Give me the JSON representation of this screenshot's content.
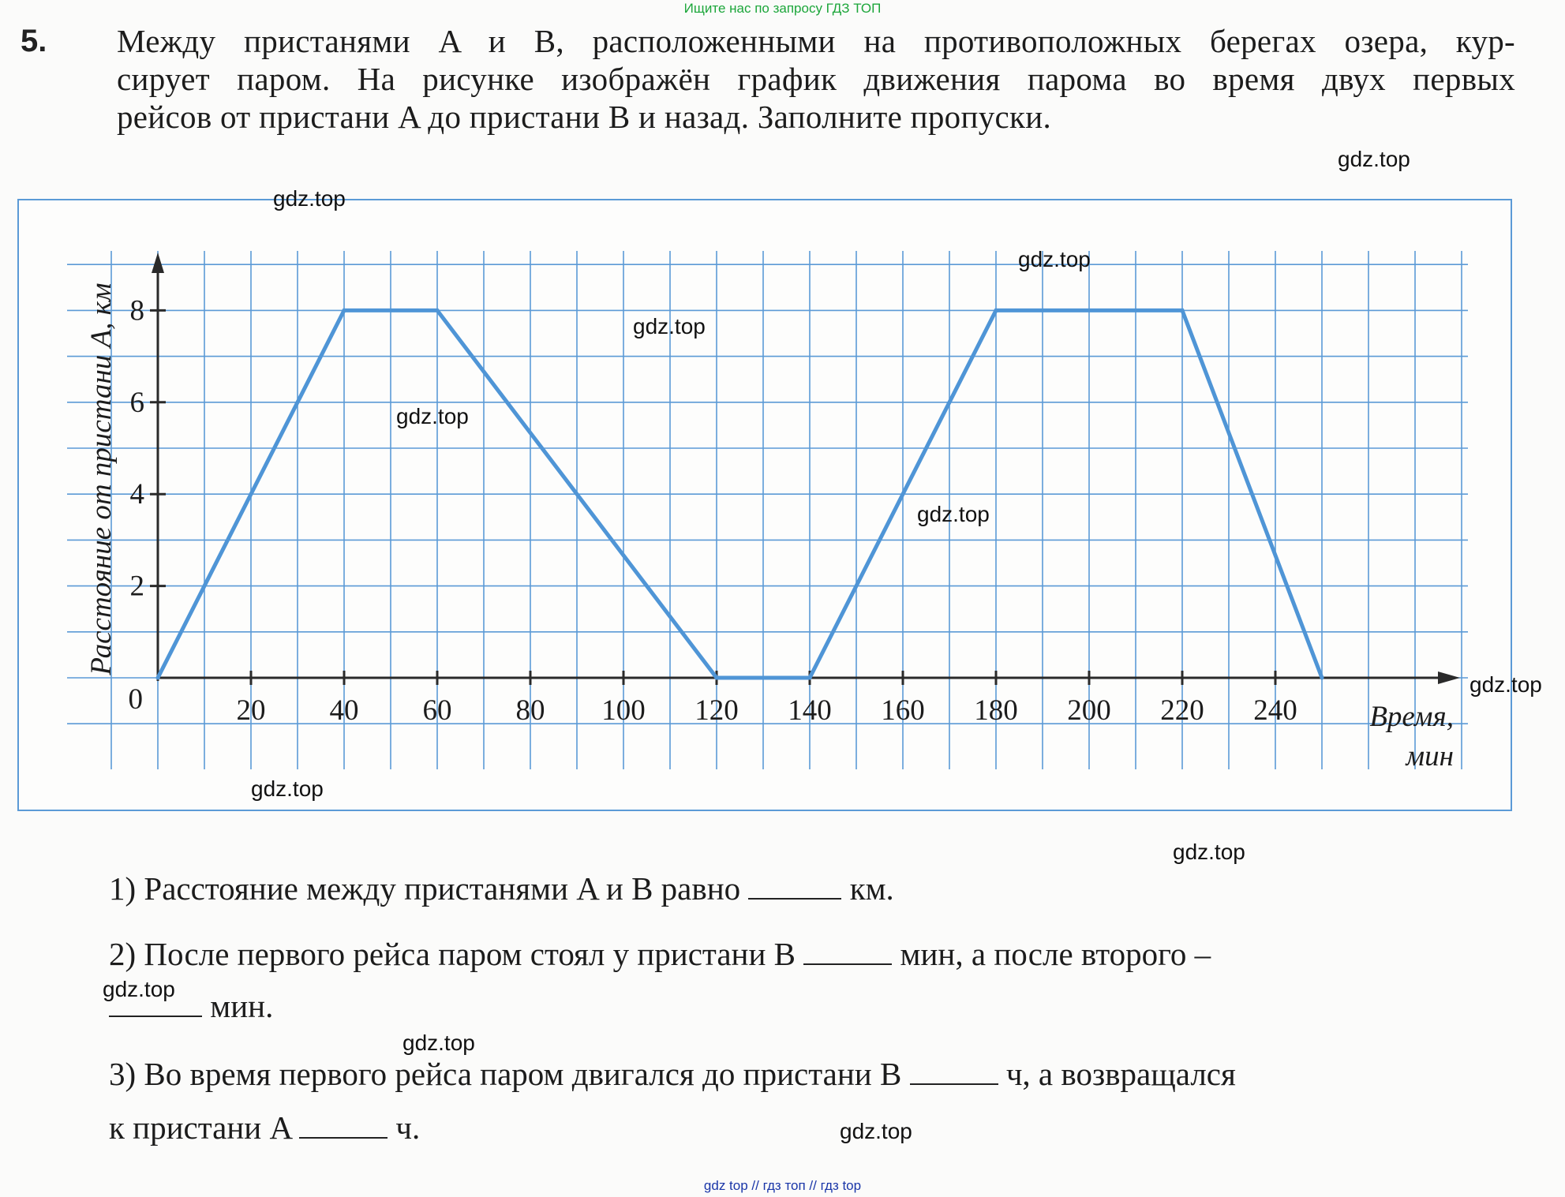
{
  "banner_top": "Ищите нас по запросу ГДЗ ТОП",
  "task": {
    "number": "5.",
    "lines": [
      "Между пристанями A и B, расположенными на противоположных берегах озера, кур-",
      "сирует паром. На рисунке изображён график движения парома во время двух первых",
      "рейсов от пристани A до пристани B и назад. Заполните пропуски."
    ]
  },
  "chart_data": {
    "type": "line",
    "title": "",
    "xlabel": "Время, мин",
    "xlabel_line1": "Время,",
    "xlabel_line2": "мин",
    "ylabel": "Расстояние от пристани A, км",
    "origin_label": "0",
    "xlim": [
      -10,
      280
    ],
    "ylim": [
      0,
      9
    ],
    "x_ticks": [
      20,
      40,
      60,
      80,
      100,
      120,
      140,
      160,
      180,
      200,
      220,
      240
    ],
    "y_ticks": [
      2,
      4,
      6,
      8
    ],
    "grid": true,
    "grid_step_x": 10,
    "grid_step_y": 1,
    "series_color": "#4f95d6",
    "axis_color": "#2a2a2a",
    "grid_color": "#5b9ad6",
    "series": [
      {
        "x": [
          0,
          40,
          60,
          120,
          140,
          180,
          220,
          250
        ],
        "y": [
          0,
          8,
          8,
          0,
          0,
          8,
          8,
          0
        ]
      }
    ]
  },
  "questions": [
    {
      "num": "1)",
      "text_before": "Расстояние между пристанями A и B равно",
      "text_after": "км."
    },
    {
      "num": "2)",
      "text_before": "После первого рейса паром стоял у пристани B",
      "text_middle": "мин, а после второго –",
      "text_after": "мин."
    },
    {
      "num": "3)",
      "text_before": "Во время первого рейса паром двигался до пристани B",
      "text_middle": "ч, а возвращался",
      "text_line2_before": "к пристани A",
      "text_after": "ч."
    }
  ],
  "watermark": "gdz.top",
  "banner_bottom": "gdz top // гдз топ // гдз top"
}
